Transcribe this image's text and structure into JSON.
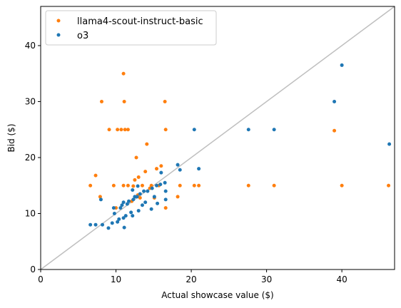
{
  "chart_data": {
    "type": "scatter",
    "title": "",
    "xlabel": "Actual showcase value ($)",
    "ylabel": "Bid ($)",
    "xlim": [
      0,
      47
    ],
    "ylim": [
      0,
      47
    ],
    "xticks": [
      0,
      10,
      20,
      30,
      40
    ],
    "yticks": [
      0,
      10,
      20,
      30,
      40
    ],
    "grid": false,
    "legend_position": "top-left",
    "reference_line": {
      "from": [
        0,
        0
      ],
      "to": [
        47,
        47
      ],
      "color": "#bfbfbf"
    },
    "series": [
      {
        "name": "llama4-scout-instruct-basic",
        "color": "#ff7f0e",
        "points": [
          [
            6.6,
            15
          ],
          [
            7.3,
            16.8
          ],
          [
            7.9,
            13
          ],
          [
            8.1,
            30
          ],
          [
            9.1,
            25
          ],
          [
            9.7,
            15
          ],
          [
            10,
            11
          ],
          [
            10.2,
            25
          ],
          [
            10.7,
            25
          ],
          [
            11,
            35
          ],
          [
            11.1,
            30
          ],
          [
            11.2,
            25
          ],
          [
            11.6,
            25
          ],
          [
            11.0,
            15
          ],
          [
            11.6,
            15
          ],
          [
            12.1,
            12.2
          ],
          [
            12.3,
            14.9
          ],
          [
            12.5,
            16
          ],
          [
            12.7,
            20
          ],
          [
            12.9,
            13.3
          ],
          [
            13,
            16.5
          ],
          [
            13.2,
            12.8
          ],
          [
            13.5,
            15
          ],
          [
            13.9,
            17.5
          ],
          [
            14.1,
            22.4
          ],
          [
            14.5,
            14.5
          ],
          [
            14.7,
            15
          ],
          [
            15.1,
            12.8
          ],
          [
            15.4,
            18
          ],
          [
            15.7,
            15
          ],
          [
            16.0,
            18.5
          ],
          [
            16.5,
            30
          ],
          [
            16.6,
            25
          ],
          [
            16.6,
            11
          ],
          [
            18.2,
            13
          ],
          [
            18.5,
            15
          ],
          [
            20.4,
            15
          ],
          [
            21.0,
            15
          ],
          [
            27.6,
            15
          ],
          [
            31.0,
            15
          ],
          [
            39.0,
            24.8
          ],
          [
            40.0,
            15
          ],
          [
            46.2,
            15
          ]
        ]
      },
      {
        "name": "o3",
        "color": "#1f77b4",
        "points": [
          [
            6.6,
            8
          ],
          [
            7.3,
            8
          ],
          [
            8.0,
            12.5
          ],
          [
            8.2,
            8
          ],
          [
            9.0,
            7.4
          ],
          [
            9.5,
            8.3
          ],
          [
            9.7,
            11
          ],
          [
            9.8,
            10
          ],
          [
            10.2,
            8.5
          ],
          [
            10.4,
            9
          ],
          [
            10.6,
            11
          ],
          [
            10.8,
            11.5
          ],
          [
            11.0,
            12.0
          ],
          [
            11.0,
            9.2
          ],
          [
            11.1,
            7.5
          ],
          [
            11.3,
            9.6
          ],
          [
            11.5,
            11.7
          ],
          [
            11.7,
            12.2
          ],
          [
            12.0,
            10.2
          ],
          [
            12.2,
            9.6
          ],
          [
            12.2,
            14.2
          ],
          [
            12.3,
            12.5
          ],
          [
            12.5,
            13.0
          ],
          [
            12.8,
            13.0
          ],
          [
            12.9,
            14.9
          ],
          [
            13.0,
            10.5
          ],
          [
            13.2,
            13.5
          ],
          [
            13.5,
            11.5
          ],
          [
            13.7,
            14.0
          ],
          [
            13.9,
            12.0
          ],
          [
            14.2,
            14.0
          ],
          [
            14.7,
            10.8
          ],
          [
            14.8,
            14.5
          ],
          [
            15.1,
            13.0
          ],
          [
            15.4,
            15.0
          ],
          [
            15.5,
            11.8
          ],
          [
            15.9,
            15.2
          ],
          [
            16.0,
            17.3
          ],
          [
            16.5,
            15.5
          ],
          [
            16.6,
            14.0
          ],
          [
            16.6,
            12.5
          ],
          [
            18.2,
            18.7
          ],
          [
            18.5,
            17.8
          ],
          [
            20.4,
            25.0
          ],
          [
            21.0,
            18.0
          ],
          [
            27.6,
            25.0
          ],
          [
            31.0,
            25.0
          ],
          [
            39.0,
            30.0
          ],
          [
            40.0,
            36.5
          ],
          [
            46.3,
            22.4
          ]
        ]
      }
    ]
  }
}
